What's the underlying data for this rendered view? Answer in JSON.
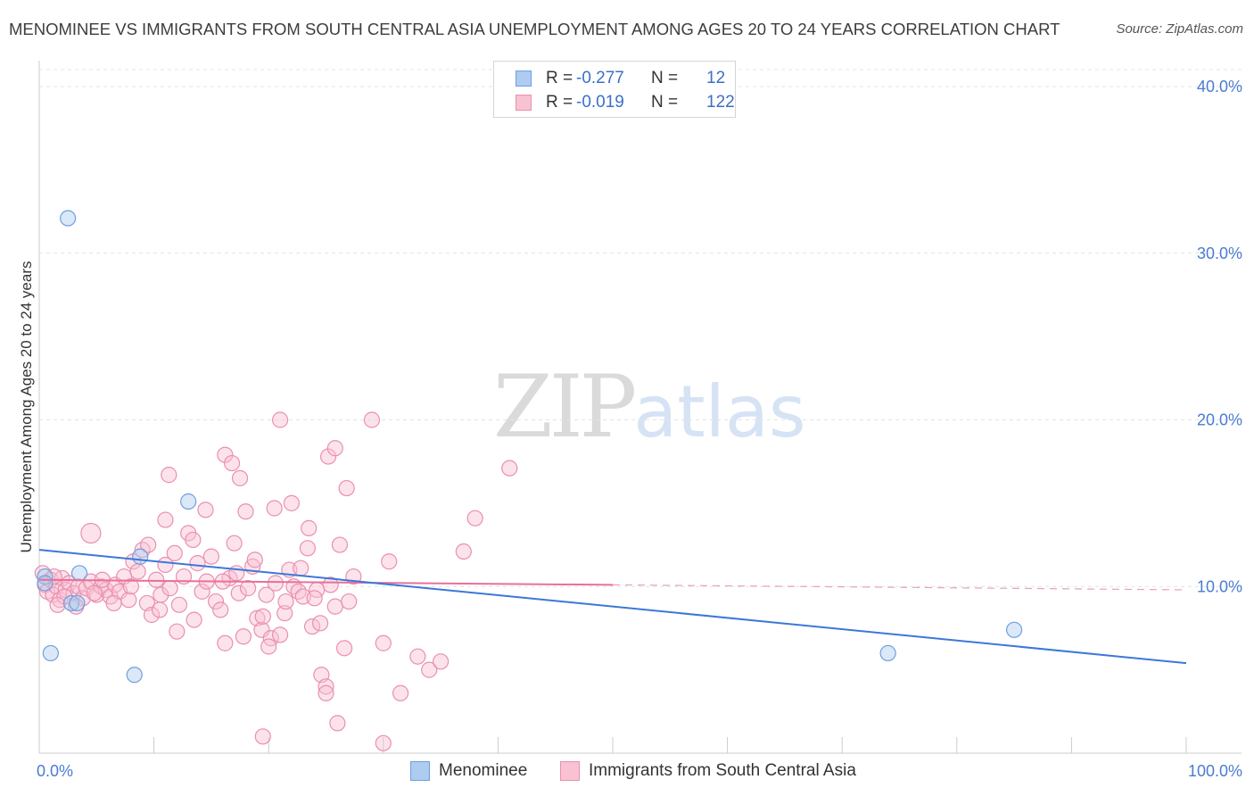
{
  "title": "MENOMINEE VS IMMIGRANTS FROM SOUTH CENTRAL ASIA UNEMPLOYMENT AMONG AGES 20 TO 24 YEARS CORRELATION CHART",
  "source": "Source: ZipAtlas.com",
  "watermark": {
    "zip": "ZIP",
    "atlas": "atlas"
  },
  "legend_top": {
    "rows": [
      {
        "r_label": "R =",
        "r_value": "-0.277",
        "n_label": "N =",
        "n_value": "12",
        "color": "#aecbf0",
        "border": "#6f9fdf"
      },
      {
        "r_label": "R =",
        "r_value": "-0.019",
        "n_label": "N =",
        "n_value": "122",
        "color": "#f8c2d3",
        "border": "#ea8fae"
      }
    ]
  },
  "legend_bottom": [
    {
      "label": "Menominee",
      "color": "#aecbf0",
      "border": "#6f9fdf"
    },
    {
      "label": "Immigrants from South Central Asia",
      "color": "#f8c2d3",
      "border": "#ea8fae"
    }
  ],
  "chart_data": {
    "type": "scatter",
    "title": "MENOMINEE VS IMMIGRANTS FROM SOUTH CENTRAL ASIA UNEMPLOYMENT AMONG AGES 20 TO 24 YEARS CORRELATION CHART",
    "xlabel": "",
    "ylabel": "Unemployment Among Ages 20 to 24 years",
    "xlim": [
      0,
      100
    ],
    "ylim": [
      0,
      40
    ],
    "x_tick_labels": [
      "0.0%",
      "100.0%"
    ],
    "y_ticks": [
      10,
      20,
      30,
      40
    ],
    "y_tick_labels": [
      "10.0%",
      "20.0%",
      "30.0%",
      "40.0%"
    ],
    "grid": true,
    "series": [
      {
        "name": "Menominee",
        "color": "#6f9fdf",
        "fill": "#aecbf0",
        "points": [
          [
            0.5,
            10.6
          ],
          [
            0.5,
            10.2
          ],
          [
            1.0,
            6.0
          ],
          [
            2.5,
            32.1
          ],
          [
            2.8,
            9.0
          ],
          [
            3.3,
            9.0
          ],
          [
            3.5,
            10.8
          ],
          [
            8.3,
            4.7
          ],
          [
            8.8,
            11.8
          ],
          [
            13.0,
            15.1
          ],
          [
            74.0,
            6.0
          ],
          [
            85.0,
            7.4
          ]
        ],
        "trend": {
          "x1": 0,
          "y1": 12.2,
          "x2": 100,
          "y2": 5.4,
          "style": "solid"
        }
      },
      {
        "name": "Immigrants from South Central Asia",
        "color": "#ea8fae",
        "fill": "#f8c2d3",
        "points": [
          [
            0.3,
            10.8
          ],
          [
            0.5,
            10.1
          ],
          [
            0.7,
            9.7
          ],
          [
            1.0,
            10.4
          ],
          [
            1.2,
            9.5
          ],
          [
            1.5,
            10.0
          ],
          [
            1.8,
            9.2
          ],
          [
            2.0,
            10.5
          ],
          [
            2.3,
            9.8
          ],
          [
            2.6,
            10.2
          ],
          [
            3.0,
            9.6
          ],
          [
            3.4,
            10.0
          ],
          [
            3.8,
            9.3
          ],
          [
            4.1,
            9.9
          ],
          [
            4.5,
            10.3
          ],
          [
            5.0,
            9.5
          ],
          [
            5.4,
            10.0
          ],
          [
            5.8,
            9.8
          ],
          [
            6.2,
            9.4
          ],
          [
            6.6,
            10.1
          ],
          [
            7.0,
            9.7
          ],
          [
            7.4,
            10.6
          ],
          [
            7.8,
            9.2
          ],
          [
            8.2,
            11.5
          ],
          [
            8.6,
            10.9
          ],
          [
            9.0,
            12.2
          ],
          [
            9.4,
            9.0
          ],
          [
            9.8,
            8.3
          ],
          [
            10.2,
            10.4
          ],
          [
            10.6,
            9.5
          ],
          [
            11.0,
            11.3
          ],
          [
            11.4,
            9.9
          ],
          [
            11.8,
            12.0
          ],
          [
            12.2,
            8.9
          ],
          [
            12.6,
            10.6
          ],
          [
            13.0,
            13.2
          ],
          [
            13.4,
            12.8
          ],
          [
            13.8,
            11.4
          ],
          [
            14.2,
            9.7
          ],
          [
            14.6,
            10.3
          ],
          [
            15.0,
            11.8
          ],
          [
            15.4,
            9.1
          ],
          [
            15.8,
            8.6
          ],
          [
            16.2,
            6.6
          ],
          [
            16.6,
            10.5
          ],
          [
            17.0,
            12.6
          ],
          [
            17.4,
            9.6
          ],
          [
            17.8,
            7.0
          ],
          [
            18.2,
            9.9
          ],
          [
            18.6,
            11.2
          ],
          [
            19.0,
            8.1
          ],
          [
            19.4,
            7.4
          ],
          [
            19.8,
            9.5
          ],
          [
            20.2,
            6.9
          ],
          [
            20.6,
            10.2
          ],
          [
            21.0,
            7.1
          ],
          [
            21.4,
            8.4
          ],
          [
            21.8,
            11.0
          ],
          [
            22.2,
            10.0
          ],
          [
            22.6,
            9.7
          ],
          [
            23.0,
            9.4
          ],
          [
            23.4,
            12.3
          ],
          [
            23.8,
            7.6
          ],
          [
            24.2,
            9.8
          ],
          [
            24.6,
            4.7
          ],
          [
            25.0,
            4.0
          ],
          [
            25.4,
            10.1
          ],
          [
            25.8,
            8.8
          ],
          [
            26.2,
            12.5
          ],
          [
            26.6,
            6.3
          ],
          [
            27.0,
            9.1
          ],
          [
            27.4,
            10.6
          ],
          [
            4.5,
            13.2
          ],
          [
            11.3,
            16.7
          ],
          [
            11.0,
            14.0
          ],
          [
            14.5,
            14.6
          ],
          [
            16.2,
            17.9
          ],
          [
            16.8,
            17.4
          ],
          [
            17.5,
            16.5
          ],
          [
            18.0,
            14.5
          ],
          [
            20.5,
            14.7
          ],
          [
            21.0,
            20.0
          ],
          [
            22.0,
            15.0
          ],
          [
            23.5,
            13.5
          ],
          [
            25.2,
            17.8
          ],
          [
            25.8,
            18.3
          ],
          [
            26.8,
            15.9
          ],
          [
            29.0,
            20.0
          ],
          [
            30.0,
            6.6
          ],
          [
            31.5,
            3.6
          ],
          [
            33.0,
            5.8
          ],
          [
            34.0,
            5.0
          ],
          [
            35.0,
            5.5
          ],
          [
            37.0,
            12.1
          ],
          [
            38.0,
            14.1
          ],
          [
            41.0,
            17.1
          ],
          [
            19.5,
            8.2
          ],
          [
            20.0,
            6.4
          ],
          [
            13.5,
            8.0
          ],
          [
            12.0,
            7.3
          ],
          [
            10.5,
            8.6
          ],
          [
            9.5,
            12.5
          ],
          [
            8.0,
            10.0
          ],
          [
            6.5,
            9.0
          ],
          [
            5.5,
            10.4
          ],
          [
            4.8,
            9.6
          ],
          [
            3.2,
            8.8
          ],
          [
            2.2,
            9.4
          ],
          [
            1.6,
            8.9
          ],
          [
            1.3,
            10.6
          ],
          [
            16.0,
            10.3
          ],
          [
            17.2,
            10.8
          ],
          [
            18.8,
            11.6
          ],
          [
            21.5,
            9.1
          ],
          [
            22.8,
            11.1
          ],
          [
            24.0,
            9.3
          ],
          [
            25.0,
            3.6
          ],
          [
            26.0,
            1.8
          ],
          [
            19.5,
            1.0
          ],
          [
            30.0,
            0.6
          ],
          [
            30.5,
            11.5
          ],
          [
            24.5,
            7.8
          ]
        ],
        "trend": {
          "x1": 0,
          "y1": 10.4,
          "x2": 50,
          "y2": 10.1,
          "style": "solid",
          "extension": {
            "x2": 100,
            "y2": 9.8,
            "style": "dashed"
          }
        }
      }
    ]
  }
}
